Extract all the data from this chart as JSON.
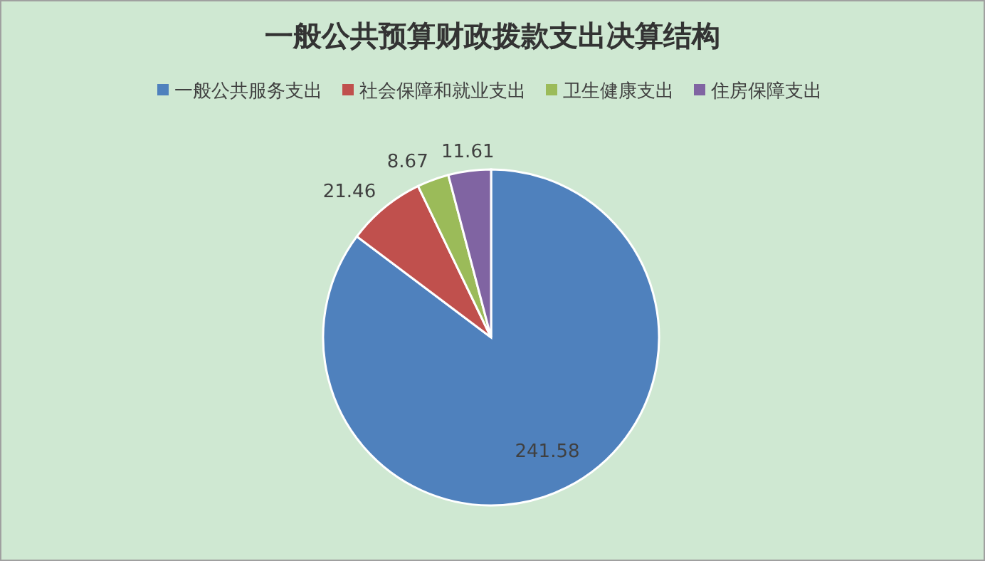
{
  "chart_data": {
    "type": "pie",
    "title": "一般公共预算财政拨款支出决算结构",
    "categories": [
      "一般公共服务支出",
      "社会保障和就业支出",
      "卫生健康支出",
      "住房保障支出"
    ],
    "values": [
      241.58,
      21.46,
      8.67,
      11.61
    ],
    "colors": [
      "#4f81bd",
      "#c0504d",
      "#9bbb59",
      "#8064a2"
    ],
    "data_labels": true,
    "legend": "top"
  }
}
